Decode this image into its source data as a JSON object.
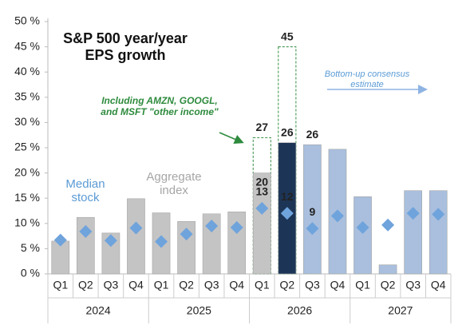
{
  "chart_data": {
    "type": "bar",
    "title": "S&P 500 year/year EPS growth",
    "annotation": "Bottom-up consensus estimate",
    "categories": [
      "Q1",
      "Q2",
      "Q3",
      "Q4",
      "Q1",
      "Q2",
      "Q3",
      "Q4",
      "Q1",
      "Q2",
      "Q3",
      "Q4",
      "Q1",
      "Q2",
      "Q3",
      "Q4"
    ],
    "years": [
      "2024",
      "2025",
      "2026",
      "2027"
    ],
    "ylim": [
      0,
      50
    ],
    "yticks": [
      {
        "value": 0,
        "label": "0 %"
      },
      {
        "value": 5,
        "label": "5 %"
      },
      {
        "value": 10,
        "label": "10 %"
      },
      {
        "value": 15,
        "label": "15 %"
      },
      {
        "value": 20,
        "label": "20 %"
      },
      {
        "value": 25,
        "label": "25 %"
      },
      {
        "value": 30,
        "label": "30 %"
      },
      {
        "value": 35,
        "label": "35 %"
      },
      {
        "value": 40,
        "label": "40 %"
      },
      {
        "value": 45,
        "label": "45 %"
      },
      {
        "value": 50,
        "label": "50 %"
      }
    ],
    "series": [
      {
        "name": "Including AMZN, GOOGL, and MSFT \"other income\"",
        "type": "dashed-bar",
        "color": "#2e8b3e",
        "values": [
          null,
          null,
          null,
          null,
          null,
          null,
          null,
          null,
          27,
          45,
          null,
          null,
          null,
          null,
          null,
          null
        ]
      },
      {
        "name": "Aggregate index",
        "type": "bar",
        "color": "#a6a6a6",
        "colors": [
          "#c4c4c4",
          "#c4c4c4",
          "#c4c4c4",
          "#c4c4c4",
          "#c4c4c4",
          "#c4c4c4",
          "#c4c4c4",
          "#c4c4c4",
          "#c4c4c4",
          "#1c3557",
          "#a9bfdd",
          "#a9bfdd",
          "#a9bfdd",
          "#a9bfdd",
          "#a9bfdd",
          "#a9bfdd"
        ],
        "values": [
          6.5,
          11.2,
          8.1,
          14.9,
          12.1,
          10.4,
          11.9,
          12.3,
          20,
          26,
          25.6,
          24.7,
          15.3,
          1.8,
          16.5,
          16.5
        ],
        "value_labels": [
          null,
          null,
          null,
          null,
          null,
          null,
          null,
          null,
          "20",
          "26",
          "26",
          null,
          null,
          null,
          null,
          null
        ]
      },
      {
        "name": "Median stock",
        "type": "diamond",
        "color": "#5b9bd5",
        "values": [
          6.7,
          8.4,
          6.6,
          9.1,
          6.4,
          7.9,
          9.5,
          9.2,
          13,
          12,
          9,
          11.5,
          9.2,
          9.7,
          12,
          11.8
        ],
        "value_labels": [
          null,
          null,
          null,
          null,
          null,
          null,
          null,
          null,
          "13",
          "12",
          "9",
          null,
          null,
          null,
          null,
          null
        ]
      }
    ]
  }
}
